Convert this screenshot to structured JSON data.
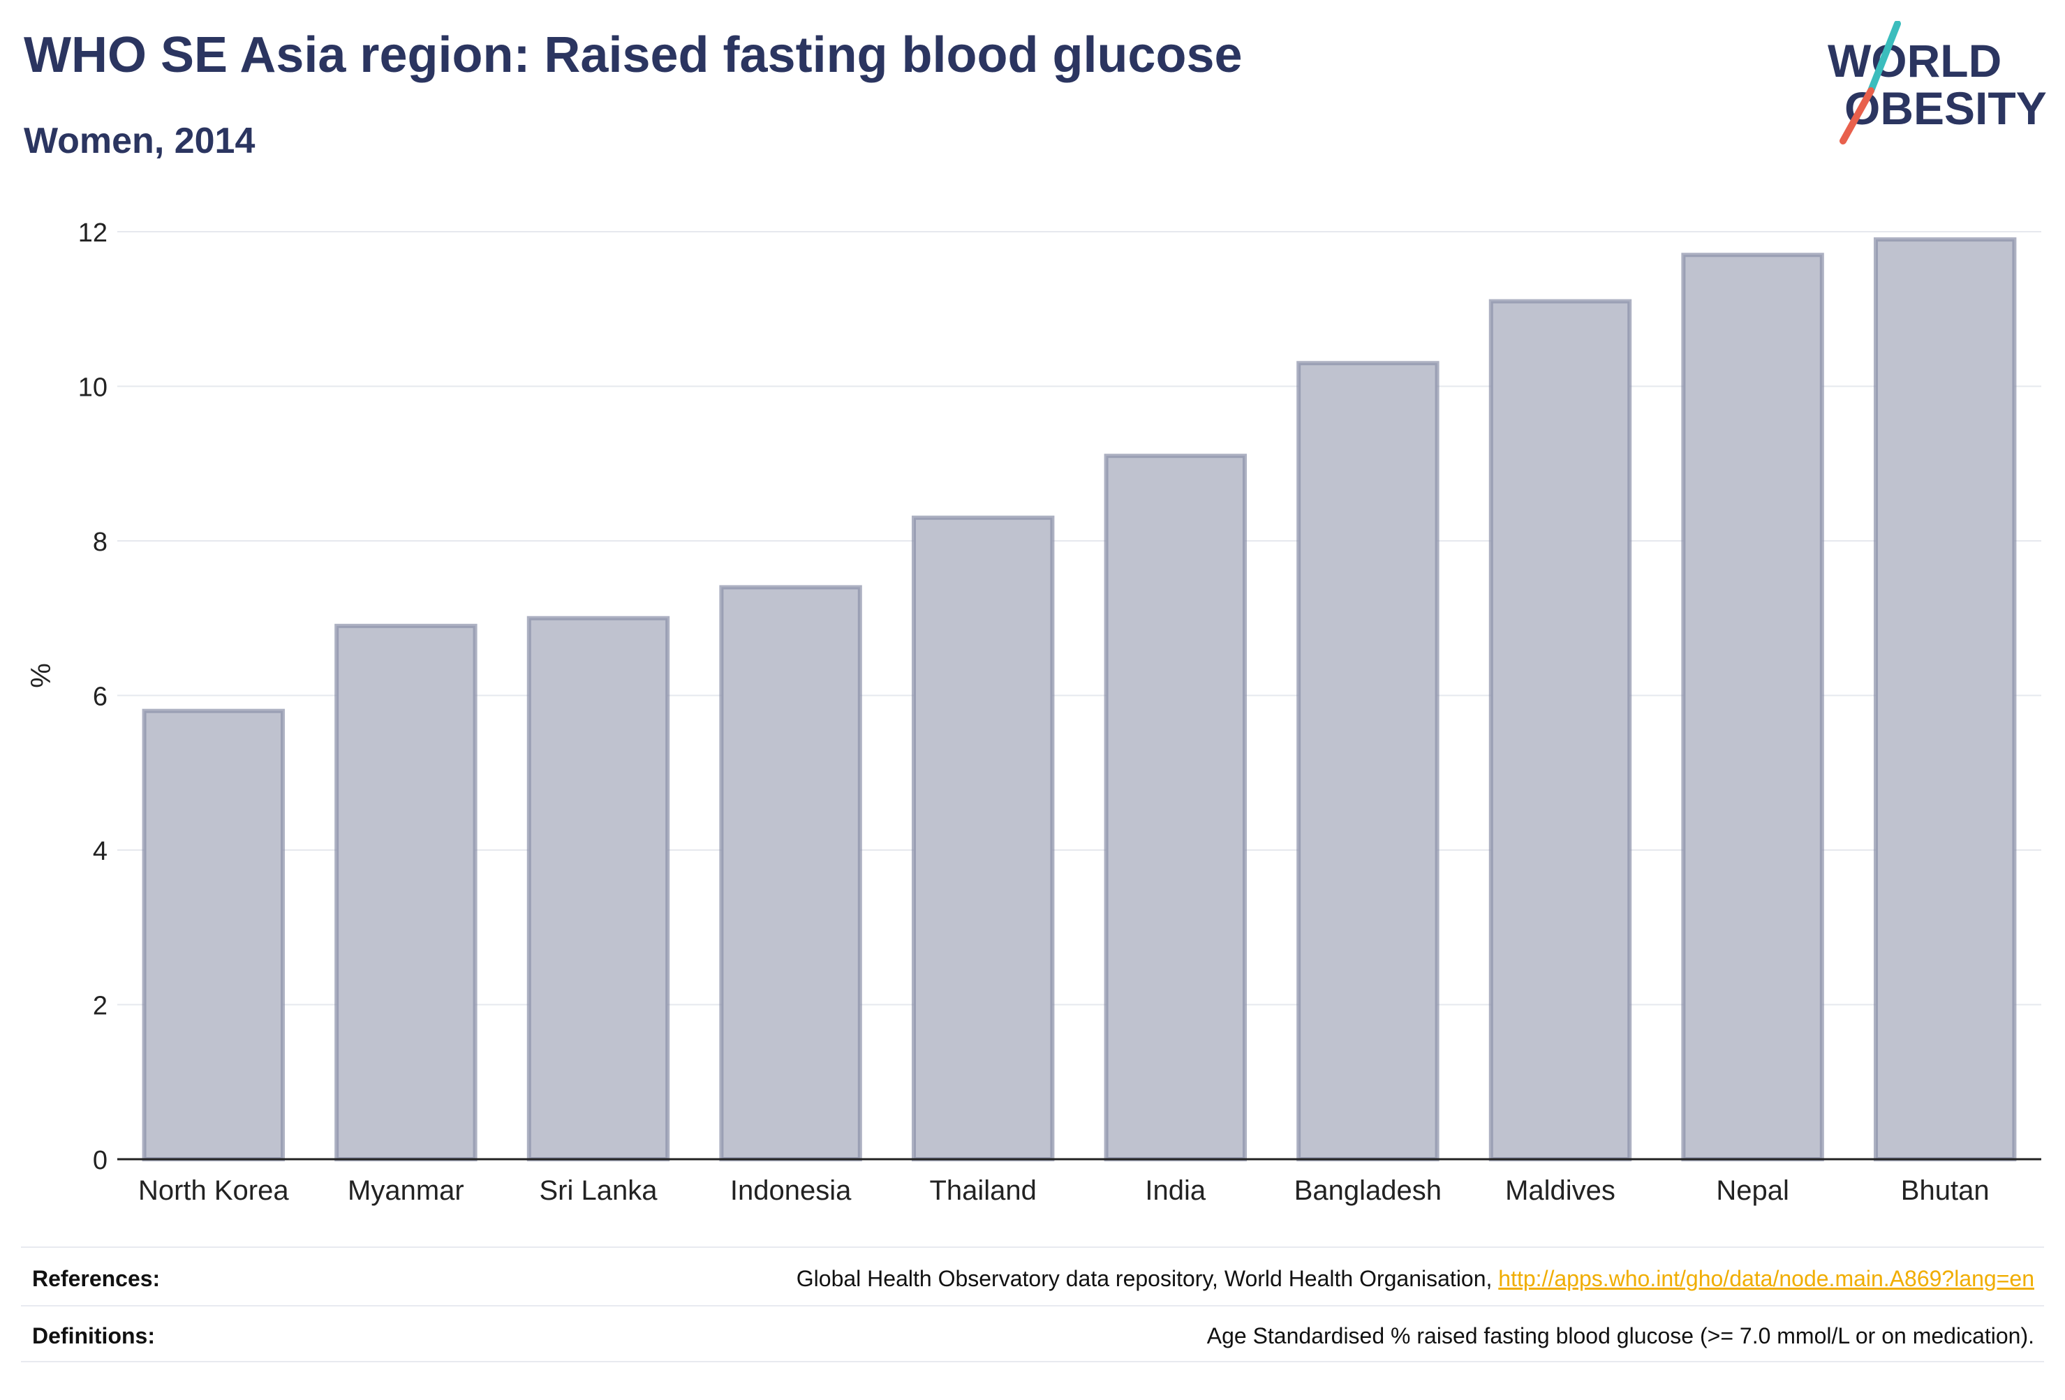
{
  "header": {
    "title": "WHO SE Asia region: Raised fasting blood glucose",
    "subtitle": "Women, 2014"
  },
  "logo": {
    "line1": "WORLD",
    "line2": "OBESITY",
    "icon": "world-obesity-logo",
    "colors": {
      "text": "#2b3560",
      "slash_top": "#3bbdbd",
      "slash_bottom": "#e8604c"
    }
  },
  "chart_data": {
    "type": "bar",
    "categories": [
      "North Korea",
      "Myanmar",
      "Sri Lanka",
      "Indonesia",
      "Thailand",
      "India",
      "Bangladesh",
      "Maldives",
      "Nepal",
      "Bhutan"
    ],
    "values": [
      5.8,
      6.9,
      7.0,
      7.4,
      8.3,
      9.1,
      10.3,
      11.1,
      11.7,
      11.9
    ],
    "ylabel": "%",
    "ylim": [
      0,
      12
    ],
    "yticks": [
      0,
      2,
      4,
      6,
      8,
      10,
      12
    ],
    "grid": true,
    "colors": {
      "bar_fill": "#bfc2cf",
      "bar_stroke": "#8a90a8",
      "grid": "#e6e8ee",
      "axis": "#222222"
    }
  },
  "footer": {
    "references_label": "References:",
    "references_text": "Global Health Observatory data repository, World Health Organisation, ",
    "references_link": "http://apps.who.int/gho/data/node.main.A869?lang=en",
    "definitions_label": "Definitions:",
    "definitions_text": "Age Standardised % raised fasting blood glucose (>= 7.0 mmol/L or on medication)."
  }
}
